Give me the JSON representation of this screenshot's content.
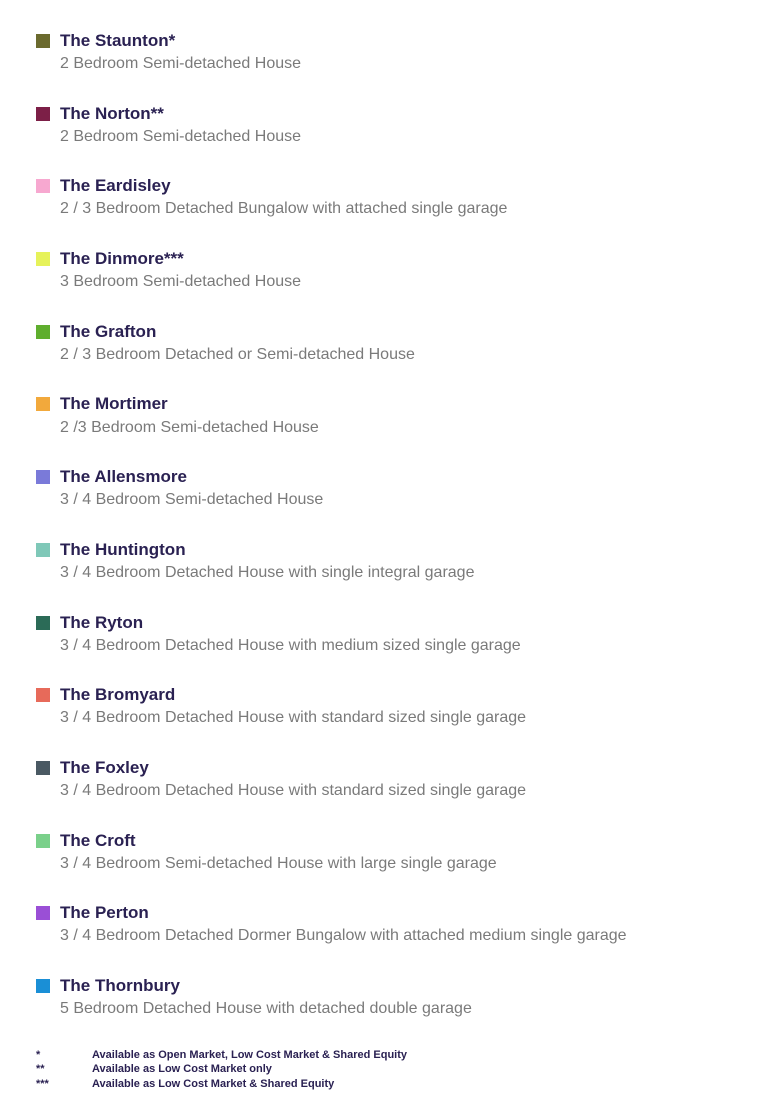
{
  "colors": {
    "title": "#2a2152",
    "desc": "#7a7a7a",
    "background": "#ffffff"
  },
  "legend": [
    {
      "swatch": "#6b6a2e",
      "title": "The Staunton*",
      "desc": "2 Bedroom Semi-detached House"
    },
    {
      "swatch": "#7c1f47",
      "title": "The Norton**",
      "desc": "2 Bedroom Semi-detached House"
    },
    {
      "swatch": "#f7a8d0",
      "title": "The Eardisley",
      "desc": "2 / 3 Bedroom Detached Bungalow with attached single garage"
    },
    {
      "swatch": "#e6f25a",
      "title": "The Dinmore***",
      "desc": "3 Bedroom Semi-detached House"
    },
    {
      "swatch": "#5fae2e",
      "title": "The Grafton",
      "desc": "2 / 3 Bedroom Detached or Semi-detached House"
    },
    {
      "swatch": "#f2a93c",
      "title": "The Mortimer",
      "desc": "2 /3 Bedroom Semi-detached House"
    },
    {
      "swatch": "#7a7ad9",
      "title": "The Allensmore",
      "desc": "3 / 4 Bedroom Semi-detached House"
    },
    {
      "swatch": "#7fc8b8",
      "title": "The Huntington",
      "desc": "3 / 4 Bedroom Detached House with single integral garage"
    },
    {
      "swatch": "#2b6b57",
      "title": "The Ryton",
      "desc": "3 / 4 Bedroom Detached House with medium sized single garage"
    },
    {
      "swatch": "#e76a5a",
      "title": "The Bromyard",
      "desc": "3 / 4 Bedroom Detached House with standard sized single garage"
    },
    {
      "swatch": "#4a5963",
      "title": "The Foxley",
      "desc": "3 / 4 Bedroom Detached House with standard sized single garage"
    },
    {
      "swatch": "#7ad08a",
      "title": "The Croft",
      "desc": "3 / 4 Bedroom Semi-detached House with large single garage"
    },
    {
      "swatch": "#9a4fd6",
      "title": "The Perton",
      "desc": "3 / 4 Bedroom Detached Dormer Bungalow with attached medium single garage"
    },
    {
      "swatch": "#1a8fd6",
      "title": "The Thornbury",
      "desc": "5 Bedroom Detached House with detached double garage"
    }
  ],
  "footnotes": [
    {
      "symbol": "*",
      "text": "Available as Open Market, Low Cost Market & Shared Equity"
    },
    {
      "symbol": "**",
      "text": "Available as Low Cost Market only"
    },
    {
      "symbol": "***",
      "text": "Available as Low Cost Market & Shared Equity"
    }
  ]
}
